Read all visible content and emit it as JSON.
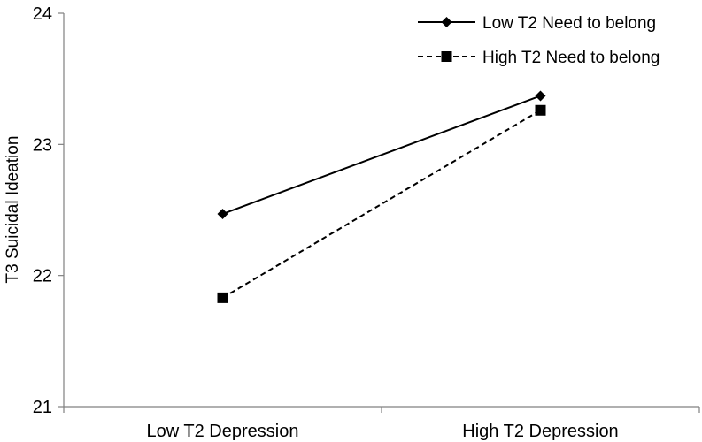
{
  "chart_data": {
    "type": "line",
    "title": "",
    "xlabel": "",
    "ylabel": "T3 Suicidal Ideation",
    "categories": [
      "Low T2 Depression",
      "High T2 Depression"
    ],
    "ylim": [
      21,
      24
    ],
    "yticks": [
      21,
      22,
      23,
      24
    ],
    "grid": false,
    "legend_position": "top-right",
    "series": [
      {
        "name": "Low T2 Need to belong",
        "values": [
          22.47,
          23.37
        ],
        "line_style": "solid",
        "marker": "diamond",
        "color": "#000000"
      },
      {
        "name": "High T2 Need to belong",
        "values": [
          21.83,
          23.26
        ],
        "line_style": "dashed",
        "marker": "square",
        "color": "#000000"
      }
    ]
  }
}
